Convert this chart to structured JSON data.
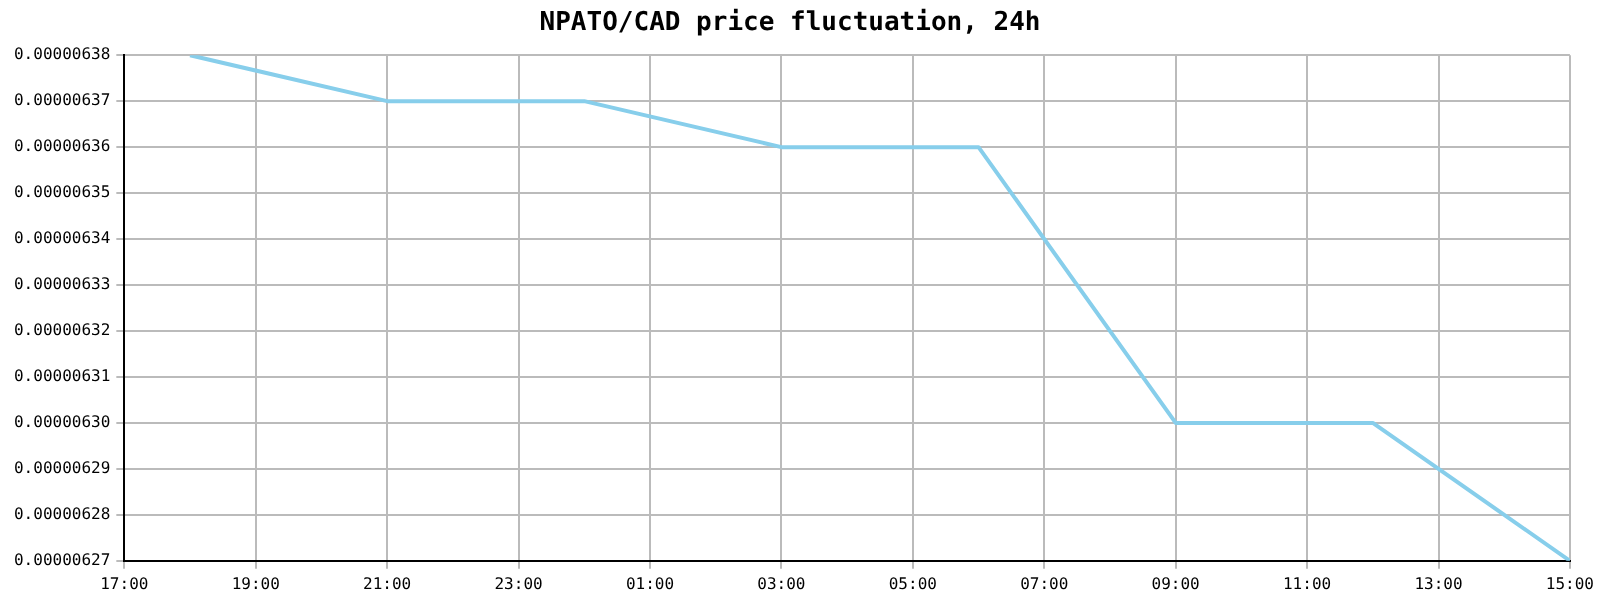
{
  "chart_data": {
    "type": "line",
    "title": "NPATO/CAD price fluctuation, 24h",
    "x": [
      "--01-01T18:00",
      "--01-01T21:00",
      "--01-02T00:00",
      "--01-02T03:00",
      "--01-02T06:00",
      "--01-02T09:00",
      "--01-02T12:00",
      "--01-02T15:00"
    ],
    "series": [
      {
        "color": "#87ceeb",
        "values": [
          6.38e-06,
          6.37e-06,
          6.37e-06,
          6.36e-06,
          6.36e-06,
          6.3e-06,
          6.3e-06,
          6.27e-06
        ]
      }
    ],
    "xlim": [
      "--01-01T17:00",
      "--01-02T15:00"
    ],
    "xticks": [
      {
        "value": "--01-01T17:00",
        "label": "17:00"
      },
      {
        "value": "--01-01T19:00",
        "label": "19:00"
      },
      {
        "value": "--01-01T21:00",
        "label": "21:00"
      },
      {
        "value": "--01-01T23:00",
        "label": "23:00"
      },
      {
        "value": "--01-02T01:00",
        "label": "01:00"
      },
      {
        "value": "--01-02T03:00",
        "label": "03:00"
      },
      {
        "value": "--01-02T05:00",
        "label": "05:00"
      },
      {
        "value": "--01-02T07:00",
        "label": "07:00"
      },
      {
        "value": "--01-02T09:00",
        "label": "09:00"
      },
      {
        "value": "--01-02T11:00",
        "label": "11:00"
      },
      {
        "value": "--01-02T13:00",
        "label": "13:00"
      },
      {
        "value": "--01-02T15:00",
        "label": "15:00"
      }
    ],
    "ylim": [
      6.27e-06,
      6.38e-06
    ],
    "yticks": [
      {
        "value": 6.27e-06,
        "label": "0.00000627"
      },
      {
        "value": 6.28e-06,
        "label": "0.00000628"
      },
      {
        "value": 6.29e-06,
        "label": "0.00000629"
      },
      {
        "value": 6.3e-06,
        "label": "0.00000630"
      },
      {
        "value": 6.31e-06,
        "label": "0.00000631"
      },
      {
        "value": 6.32e-06,
        "label": "0.00000632"
      },
      {
        "value": 6.33e-06,
        "label": "0.00000633"
      },
      {
        "value": 6.34e-06,
        "label": "0.00000634"
      },
      {
        "value": 6.35e-06,
        "label": "0.00000635"
      },
      {
        "value": 6.36e-06,
        "label": "0.00000636"
      },
      {
        "value": 6.37e-06,
        "label": "0.00000637"
      },
      {
        "value": 6.38e-06,
        "label": "0.00000638"
      }
    ],
    "grid": true,
    "legend": false,
    "marker": "none",
    "line_style": "solid"
  }
}
